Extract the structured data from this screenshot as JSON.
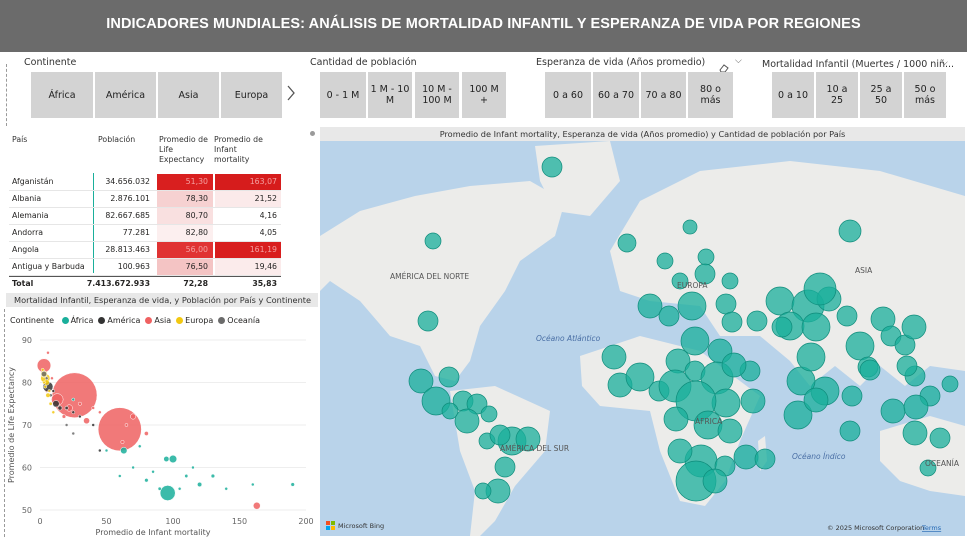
{
  "header": {
    "title": "INDICADORES MUNDIALES:  ANÁLISIS DE MORTALIDAD INFANTIL Y ESPERANZA DE VIDA POR REGIONES"
  },
  "slicers": {
    "continente": {
      "title": "Continente",
      "options": [
        "África",
        "América",
        "Asia",
        "Europa"
      ]
    },
    "poblacion": {
      "title": "Cantidad de población",
      "options": [
        "0 - 1 M",
        "1 M - 10 M",
        "10 M - 100 M",
        "100 M +"
      ]
    },
    "esperanza": {
      "title": "Esperanza de vida (Años promedio)",
      "options": [
        "0 a 60",
        "60 a 70",
        "70 a 80",
        "80 o más"
      ]
    },
    "mortalidad": {
      "title": "Mortalidad Infantil (Muertes / 1000 niñ...",
      "options": [
        "0 a 10",
        "10 a 25",
        "25 a 50",
        "50 o más"
      ]
    }
  },
  "table": {
    "headers": {
      "pais": "País",
      "poblacion": "Población",
      "life": "Promedio de Life Expectancy",
      "infant": "Promedio de Infant mortality"
    },
    "rows": [
      {
        "pais": "Afganistán",
        "poblacion": "34.656.032",
        "life": "51,30",
        "infant": "163,07"
      },
      {
        "pais": "Albania",
        "poblacion": "2.876.101",
        "life": "78,30",
        "infant": "21,52"
      },
      {
        "pais": "Alemania",
        "poblacion": "82.667.685",
        "life": "80,70",
        "infant": "4,16"
      },
      {
        "pais": "Andorra",
        "poblacion": "77.281",
        "life": "82,80",
        "infant": "4,05"
      },
      {
        "pais": "Angola",
        "poblacion": "28.813.463",
        "life": "56,00",
        "infant": "161,19"
      },
      {
        "pais": "Antigua y Barbuda",
        "poblacion": "100.963",
        "life": "76,50",
        "infant": "19,46"
      }
    ],
    "total": {
      "pais": "Total",
      "poblacion": "7.413.672.933",
      "life": "72,28",
      "infant": "35,83"
    }
  },
  "scatter": {
    "title": "Mortalidad Infantil, Esperanza de vida,  y Población por País y  Continente",
    "legend_title": "Continente",
    "legend": [
      {
        "name": "África",
        "color": "#1aaf9b"
      },
      {
        "name": "América",
        "color": "#333333"
      },
      {
        "name": "Asia",
        "color": "#ef6161"
      },
      {
        "name": "Europa",
        "color": "#f2c811"
      },
      {
        "name": "Oceanía",
        "color": "#6b6b6b"
      }
    ],
    "xlabel": "Promedio de Infant mortality",
    "ylabel": "Promedio de Life Expectancy",
    "xticks": [
      "0",
      "50",
      "100",
      "150",
      "200"
    ],
    "yticks": [
      "90",
      "80",
      "70",
      "60",
      "50"
    ]
  },
  "chart_data": {
    "type": "scatter",
    "title": "Mortalidad Infantil, Esperanza de vida,  y Población por País y  Continente",
    "xlabel": "Promedio de Infant mortality",
    "ylabel": "Promedio de Life Expectancy",
    "xlim": [
      0,
      200
    ],
    "ylim": [
      50,
      90
    ],
    "series": [
      {
        "name": "Asia",
        "color": "#ef6161",
        "points": [
          {
            "x": 26,
            "y": 77,
            "size": 1400
          },
          {
            "x": 60,
            "y": 69,
            "size": 1300
          },
          {
            "x": 3,
            "y": 84,
            "size": 130
          },
          {
            "x": 13,
            "y": 76,
            "size": 96
          },
          {
            "x": 22,
            "y": 74,
            "size": 30
          },
          {
            "x": 35,
            "y": 71,
            "size": 26
          },
          {
            "x": 62,
            "y": 66,
            "size": 8
          },
          {
            "x": 80,
            "y": 68,
            "size": 12
          },
          {
            "x": 70,
            "y": 72,
            "size": 20
          },
          {
            "x": 18,
            "y": 72,
            "size": 10
          },
          {
            "x": 40,
            "y": 74,
            "size": 6
          },
          {
            "x": 163,
            "y": 51,
            "size": 34
          },
          {
            "x": 5,
            "y": 78,
            "size": 5
          },
          {
            "x": 9,
            "y": 81,
            "size": 4
          },
          {
            "x": 45,
            "y": 73,
            "size": 5
          },
          {
            "x": 30,
            "y": 75,
            "size": 8
          },
          {
            "x": 65,
            "y": 70,
            "size": 4
          },
          {
            "x": 6,
            "y": 87,
            "size": 3
          }
        ]
      },
      {
        "name": "África",
        "color": "#1aaf9b",
        "points": [
          {
            "x": 96,
            "y": 54,
            "size": 160
          },
          {
            "x": 100,
            "y": 62,
            "size": 40
          },
          {
            "x": 63,
            "y": 64,
            "size": 30
          },
          {
            "x": 95,
            "y": 62,
            "size": 20
          },
          {
            "x": 120,
            "y": 56,
            "size": 14
          },
          {
            "x": 80,
            "y": 57,
            "size": 10
          },
          {
            "x": 110,
            "y": 58,
            "size": 8
          },
          {
            "x": 90,
            "y": 55,
            "size": 8
          },
          {
            "x": 140,
            "y": 55,
            "size": 6
          },
          {
            "x": 70,
            "y": 60,
            "size": 6
          },
          {
            "x": 75,
            "y": 65,
            "size": 6
          },
          {
            "x": 50,
            "y": 64,
            "size": 6
          },
          {
            "x": 130,
            "y": 58,
            "size": 10
          },
          {
            "x": 160,
            "y": 56,
            "size": 4
          },
          {
            "x": 190,
            "y": 56,
            "size": 10
          },
          {
            "x": 85,
            "y": 59,
            "size": 5
          },
          {
            "x": 105,
            "y": 55,
            "size": 6
          },
          {
            "x": 60,
            "y": 58,
            "size": 4
          },
          {
            "x": 115,
            "y": 60,
            "size": 5
          },
          {
            "x": 25,
            "y": 76,
            "size": 6
          }
        ]
      },
      {
        "name": "América",
        "color": "#333333",
        "points": [
          {
            "x": 6,
            "y": 79,
            "size": 70
          },
          {
            "x": 12,
            "y": 75,
            "size": 30
          },
          {
            "x": 15,
            "y": 74,
            "size": 12
          },
          {
            "x": 20,
            "y": 74,
            "size": 8
          },
          {
            "x": 25,
            "y": 73,
            "size": 6
          },
          {
            "x": 30,
            "y": 72,
            "size": 5
          },
          {
            "x": 10,
            "y": 78,
            "size": 5
          },
          {
            "x": 40,
            "y": 70,
            "size": 4
          },
          {
            "x": 8,
            "y": 77,
            "size": 4
          },
          {
            "x": 45,
            "y": 64,
            "size": 4
          }
        ]
      },
      {
        "name": "Europa",
        "color": "#f2c811",
        "points": [
          {
            "x": 4,
            "y": 81,
            "size": 60
          },
          {
            "x": 3,
            "y": 82,
            "size": 30
          },
          {
            "x": 5,
            "y": 80,
            "size": 20
          },
          {
            "x": 6,
            "y": 77,
            "size": 14
          },
          {
            "x": 8,
            "y": 75,
            "size": 8
          },
          {
            "x": 2,
            "y": 83,
            "size": 6
          },
          {
            "x": 4,
            "y": 79,
            "size": 6
          },
          {
            "x": 10,
            "y": 73,
            "size": 5
          },
          {
            "x": 3,
            "y": 80,
            "size": 5
          },
          {
            "x": 7,
            "y": 78,
            "size": 4
          }
        ]
      },
      {
        "name": "Oceanía",
        "color": "#6b6b6b",
        "points": [
          {
            "x": 3,
            "y": 82,
            "size": 20
          },
          {
            "x": 5,
            "y": 81,
            "size": 6
          },
          {
            "x": 20,
            "y": 70,
            "size": 4
          },
          {
            "x": 25,
            "y": 68,
            "size": 3
          }
        ]
      }
    ]
  },
  "map": {
    "title": "Promedio de Infant mortality, Esperanza de vida (Años promedio) y Cantidad de población por País",
    "labels": {
      "north_america": "AMÉRICA DEL NORTE",
      "south_america": "AMÉRICA DEL SUR",
      "europe": "EUROPA",
      "asia": "ASIA",
      "africa": "ÁFRICA",
      "oceania": "OCEANÍA",
      "atlantic": "Océano Atlántico",
      "indian": "Océano Índico"
    },
    "attribution": "© 2025 Microsoft Corporation",
    "terms": "Terms",
    "bing": "Microsoft Bing",
    "bubble_color": "#1aaf9b"
  }
}
